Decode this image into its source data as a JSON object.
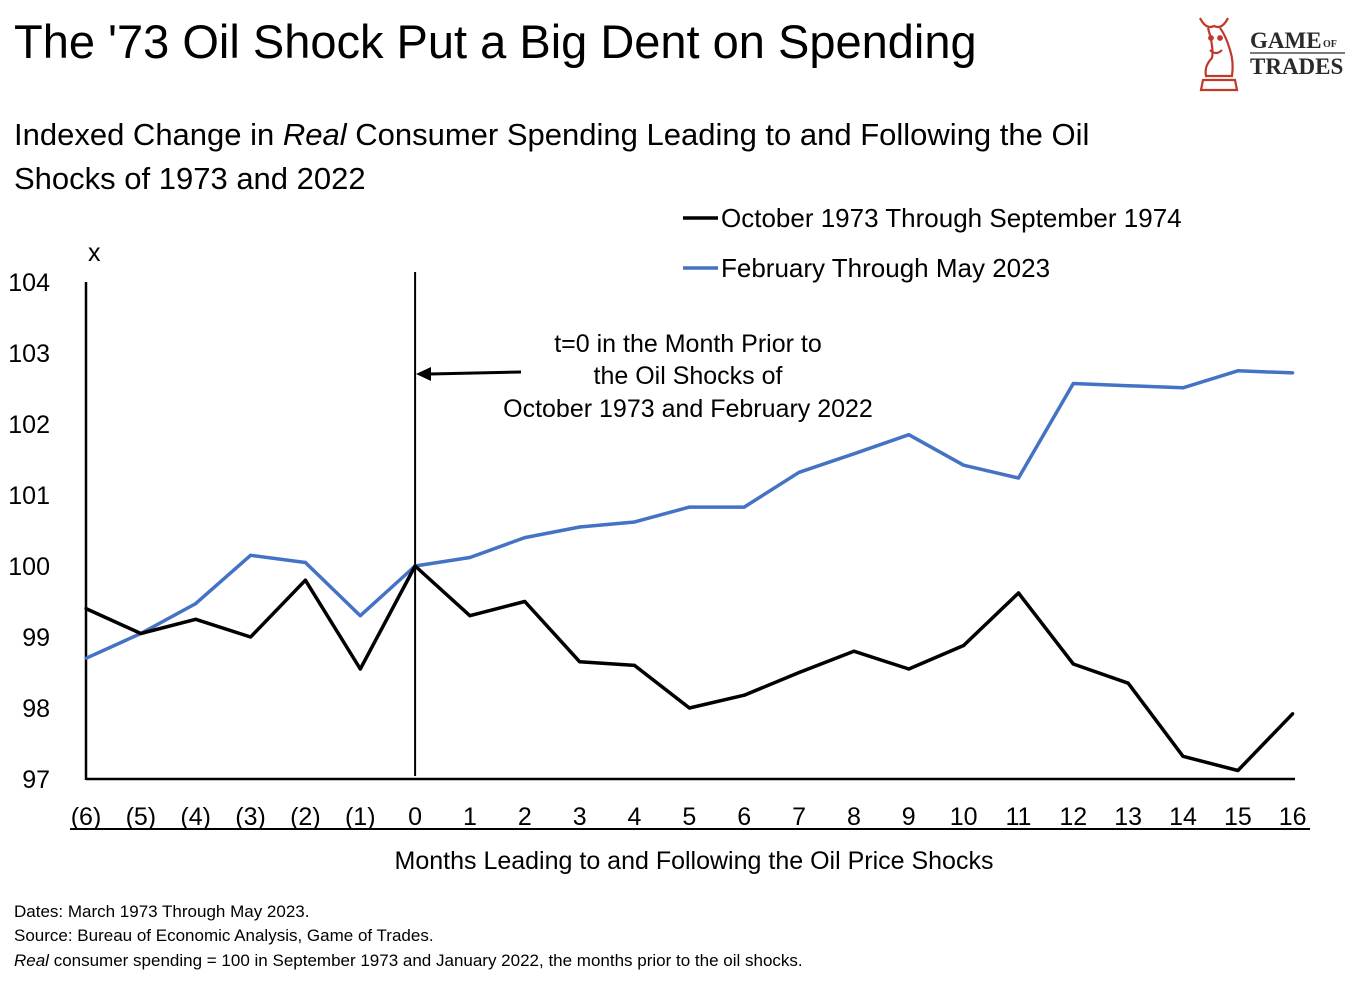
{
  "chart_data": {
    "type": "line",
    "title": "The '73 Oil Shock Put a Big Dent on Spending",
    "subtitle_parts": [
      "Indexed Change in ",
      "Real",
      " Consumer Spending Leading to and Following the Oil"
    ],
    "subtitle_line2": "Shocks of 1973 and 2022",
    "y_corner_label": "x",
    "categories": [
      "(6)",
      "(5)",
      "(4)",
      "(3)",
      "(2)",
      "(1)",
      "0",
      "1",
      "2",
      "3",
      "4",
      "5",
      "6",
      "7",
      "8",
      "9",
      "10",
      "11",
      "12",
      "13",
      "14",
      "15",
      "16"
    ],
    "series": [
      {
        "name": "October 1973 Through September 1974",
        "color": "#000000",
        "values": [
          99.4,
          99.05,
          99.25,
          99.0,
          99.8,
          98.55,
          100.0,
          99.3,
          99.5,
          98.65,
          98.6,
          98.0,
          98.18,
          98.5,
          98.8,
          98.55,
          98.88,
          99.62,
          98.62,
          98.35,
          97.32,
          97.12,
          97.92
        ]
      },
      {
        "name": "February Through May 2023",
        "color": "#4472C4",
        "values": [
          98.7,
          99.05,
          99.47,
          100.15,
          100.05,
          99.3,
          100.0,
          100.12,
          100.4,
          100.55,
          100.62,
          100.83,
          100.83,
          101.32,
          101.58,
          101.85,
          101.42,
          101.24,
          102.57,
          102.54,
          102.51,
          102.75,
          102.72
        ]
      }
    ],
    "ylim": [
      97,
      104
    ],
    "yticks": [
      97,
      98,
      99,
      100,
      101,
      102,
      103,
      104
    ],
    "xlabel": "Months Leading to and Following the Oil Price Shocks",
    "ylabel": "",
    "grid": false,
    "legend_position": "top-right",
    "annotation": {
      "lines": [
        "t=0 in the Month Prior to",
        "the Oil Shocks of",
        "October 1973 and February 2022"
      ],
      "arrow_to_category": "0"
    },
    "vertical_reference_at": "0"
  },
  "logo": {
    "line1": "GAME",
    "line1_small": "OF",
    "line2": "TRADES",
    "brand_color": "#C0392B"
  },
  "footnotes": {
    "dates": "Dates: March 1973 Through May 2023.",
    "source": "Source: Bureau of Economic Analysis, Game of Trades.",
    "note_italic": "Real",
    "note_rest": " consumer spending = 100 in September 1973 and January 2022, the months prior to the oil shocks."
  }
}
